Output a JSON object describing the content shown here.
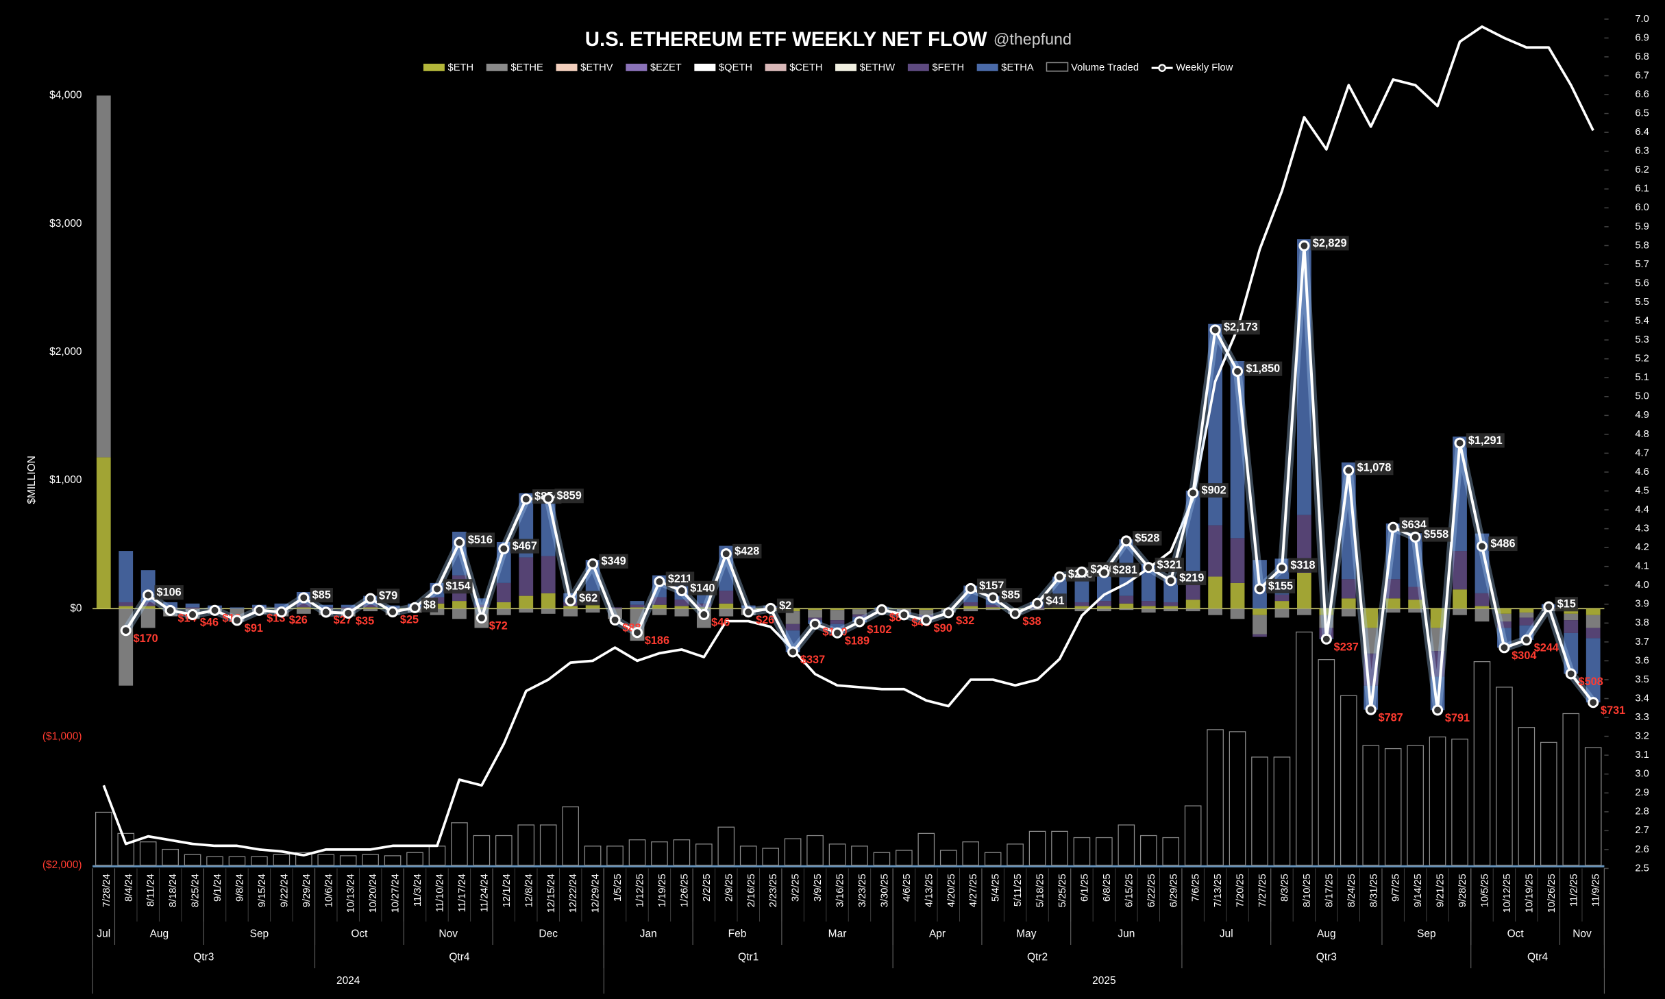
{
  "chart_data": {
    "type": "bar",
    "title": "U.S. ETHEREUM ETF WEEKLY NET FLOW",
    "subtitle": "@thepfund",
    "y_label": "$MILLION",
    "categories": [
      "7/28/24",
      "8/4/24",
      "8/11/24",
      "8/18/24",
      "8/25/24",
      "9/1/24",
      "9/8/24",
      "9/15/24",
      "9/22/24",
      "9/29/24",
      "10/6/24",
      "10/13/24",
      "10/20/24",
      "10/27/24",
      "11/3/24",
      "11/10/24",
      "11/17/24",
      "11/24/24",
      "12/1/24",
      "12/8/24",
      "12/15/24",
      "12/22/24",
      "12/29/24",
      "1/5/25",
      "1/12/25",
      "1/19/25",
      "1/26/25",
      "2/2/25",
      "2/9/25",
      "2/16/25",
      "2/23/25",
      "3/2/25",
      "3/9/25",
      "3/16/25",
      "3/23/25",
      "3/30/25",
      "4/6/25",
      "4/13/25",
      "4/20/25",
      "4/27/25",
      "5/4/25",
      "5/11/25",
      "5/18/25",
      "5/25/25",
      "6/1/25",
      "6/8/25",
      "6/15/25",
      "6/22/25",
      "6/29/25",
      "7/6/25",
      "7/13/25",
      "7/20/25",
      "7/27/25",
      "8/3/25",
      "8/10/25",
      "8/17/25",
      "8/24/25",
      "8/31/25",
      "9/7/25",
      "9/14/25",
      "9/21/25",
      "9/28/25",
      "10/5/25",
      "10/12/25",
      "10/19/25",
      "10/26/25",
      "11/2/25",
      "11/9/25"
    ],
    "month_labels": [
      "Jul",
      "Aug",
      "Sep",
      "Oct",
      "Nov",
      "Dec",
      "Jan",
      "Feb",
      "Mar",
      "Apr",
      "May",
      "Jun",
      "Jul",
      "Aug",
      "Sep",
      "Oct",
      "Nov"
    ],
    "quarter_labels": [
      "Qtr3",
      "Qtr4",
      "Qtr1",
      "Qtr2",
      "Qtr3",
      "Qtr4"
    ],
    "year_labels": [
      "2024",
      "2025"
    ],
    "ylim": [
      -2000,
      4000
    ],
    "yticks": [
      {
        "value": -2000,
        "label": "($2,000)"
      },
      {
        "value": -1000,
        "label": "($1,000)"
      },
      {
        "value": 0,
        "label": "$0"
      },
      {
        "value": 1000,
        "label": "$1,000"
      },
      {
        "value": 2000,
        "label": "$2,000"
      },
      {
        "value": 3000,
        "label": "$3,000"
      },
      {
        "value": 4000,
        "label": "$4,000"
      }
    ],
    "y2lim": [
      2.5,
      7.0
    ],
    "y2ticks": [
      2.5,
      2.6,
      2.7,
      2.8,
      2.9,
      {
        "value": 3.0,
        "label": "3.0"
      },
      3.1,
      3.2,
      3.3,
      3.4,
      3.5,
      3.6,
      3.7,
      3.8,
      3.9,
      {
        "value": 4.0,
        "label": "4.0"
      },
      4.1,
      4.2,
      4.3,
      4.4,
      4.5,
      4.6,
      4.7,
      4.8,
      4.9,
      {
        "value": 5.0,
        "label": "5.0"
      },
      5.1,
      5.2,
      5.3,
      5.4,
      5.5,
      5.6,
      5.7,
      5.8,
      5.9,
      {
        "value": 6.0,
        "label": "6.0"
      },
      6.1,
      6.2,
      6.3,
      6.4,
      6.5,
      6.6,
      6.7,
      6.8,
      6.9,
      {
        "value": 7.0,
        "label": "7.0"
      }
    ],
    "series": [
      {
        "name": "$ETH",
        "color": "#b3b63a",
        "values": [
          1180,
          20,
          20,
          0,
          0,
          0,
          0,
          0,
          0,
          10,
          0,
          0,
          10,
          0,
          0,
          40,
          60,
          10,
          50,
          100,
          120,
          20,
          30,
          0,
          10,
          30,
          20,
          10,
          40,
          0,
          5,
          -20,
          -10,
          -10,
          -5,
          0,
          0,
          -10,
          0,
          20,
          10,
          0,
          0,
          20,
          20,
          20,
          40,
          20,
          20,
          70,
          250,
          200,
          -50,
          60,
          280,
          -50,
          80,
          -150,
          80,
          70,
          -150,
          150,
          20,
          -40,
          -30,
          0,
          -40,
          -50
        ]
      },
      {
        "name": "$ETHE",
        "color": "#8a8a8a",
        "values": [
          2820,
          -600,
          -150,
          -60,
          -80,
          -40,
          -100,
          -40,
          -60,
          -40,
          -50,
          -60,
          -20,
          -50,
          -30,
          -50,
          -80,
          -150,
          -50,
          -30,
          -40,
          -60,
          -30,
          -80,
          -250,
          -50,
          -60,
          -150,
          -60,
          -50,
          -20,
          -100,
          -60,
          -80,
          -40,
          -20,
          -30,
          -40,
          -30,
          -20,
          -10,
          -40,
          -10,
          0,
          -20,
          -20,
          -10,
          -30,
          -20,
          -20,
          -50,
          -80,
          -150,
          -70,
          -50,
          -100,
          -60,
          -200,
          -30,
          -30,
          -180,
          -50,
          -100,
          -60,
          -40,
          -20,
          -50,
          -100
        ]
      },
      {
        "name": "$ETHV",
        "color": "#f3cfbd",
        "values": [
          0,
          0,
          0,
          0,
          0,
          0,
          0,
          0,
          0,
          0,
          0,
          0,
          0,
          0,
          0,
          0,
          0,
          0,
          0,
          0,
          0,
          0,
          0,
          0,
          0,
          0,
          0,
          0,
          0,
          0,
          0,
          0,
          0,
          0,
          0,
          0,
          0,
          0,
          0,
          0,
          0,
          0,
          0,
          0,
          0,
          0,
          0,
          0,
          0,
          0,
          0,
          0,
          0,
          0,
          0,
          0,
          0,
          0,
          0,
          0,
          0,
          0,
          0,
          0,
          0,
          0,
          0,
          0
        ]
      },
      {
        "name": "$EZET",
        "color": "#8a72b8",
        "values": [
          0,
          0,
          0,
          0,
          0,
          0,
          0,
          0,
          0,
          0,
          0,
          0,
          0,
          0,
          0,
          0,
          0,
          0,
          0,
          0,
          0,
          0,
          0,
          0,
          0,
          0,
          0,
          0,
          0,
          0,
          0,
          0,
          0,
          0,
          0,
          0,
          0,
          0,
          0,
          0,
          0,
          0,
          0,
          0,
          0,
          0,
          0,
          0,
          0,
          0,
          0,
          0,
          0,
          0,
          0,
          0,
          0,
          0,
          0,
          0,
          0,
          0,
          0,
          0,
          0,
          0,
          0,
          0
        ]
      },
      {
        "name": "$QETH",
        "color": "#ffffff",
        "values": [
          0,
          0,
          0,
          0,
          0,
          0,
          0,
          0,
          0,
          0,
          0,
          0,
          0,
          0,
          0,
          0,
          0,
          0,
          0,
          0,
          0,
          0,
          0,
          0,
          0,
          0,
          0,
          0,
          0,
          0,
          0,
          0,
          0,
          0,
          0,
          0,
          0,
          0,
          0,
          0,
          0,
          0,
          0,
          0,
          0,
          0,
          0,
          0,
          0,
          0,
          0,
          0,
          0,
          0,
          0,
          0,
          0,
          0,
          0,
          0,
          0,
          0,
          0,
          0,
          0,
          0,
          0,
          0
        ]
      },
      {
        "name": "$CETH",
        "color": "#d9b8b8",
        "values": [
          0,
          0,
          0,
          0,
          0,
          0,
          0,
          0,
          0,
          0,
          0,
          0,
          0,
          0,
          0,
          0,
          0,
          0,
          0,
          0,
          0,
          0,
          0,
          0,
          0,
          0,
          0,
          0,
          0,
          0,
          0,
          0,
          0,
          0,
          0,
          0,
          0,
          0,
          0,
          0,
          0,
          0,
          0,
          0,
          0,
          0,
          0,
          0,
          0,
          0,
          0,
          0,
          0,
          0,
          0,
          0,
          0,
          0,
          0,
          0,
          0,
          0,
          0,
          0,
          0,
          0,
          0,
          0
        ]
      },
      {
        "name": "$ETHW",
        "color": "#f0efe0",
        "values": [
          0,
          0,
          0,
          0,
          0,
          0,
          0,
          0,
          0,
          0,
          0,
          0,
          0,
          0,
          0,
          0,
          0,
          0,
          0,
          0,
          0,
          0,
          0,
          0,
          0,
          0,
          0,
          0,
          0,
          0,
          0,
          0,
          0,
          0,
          0,
          0,
          0,
          0,
          0,
          0,
          0,
          0,
          0,
          0,
          0,
          0,
          0,
          0,
          0,
          0,
          0,
          0,
          0,
          0,
          0,
          0,
          0,
          0,
          0,
          0,
          0,
          0,
          0,
          0,
          0,
          0,
          0,
          0
        ]
      },
      {
        "name": "$FETH",
        "color": "#5e4a80",
        "values": [
          0,
          30,
          30,
          10,
          10,
          5,
          0,
          10,
          10,
          30,
          10,
          10,
          20,
          5,
          10,
          50,
          200,
          20,
          150,
          300,
          290,
          30,
          100,
          10,
          20,
          60,
          50,
          30,
          100,
          5,
          5,
          -50,
          -20,
          -30,
          -20,
          0,
          -5,
          -20,
          0,
          30,
          20,
          0,
          10,
          30,
          30,
          40,
          60,
          40,
          30,
          130,
          400,
          350,
          -20,
          50,
          450,
          -80,
          150,
          -250,
          150,
          100,
          -200,
          300,
          100,
          -50,
          -60,
          5,
          -100,
          -80
        ]
      },
      {
        "name": "$ETHA",
        "color": "#4a6aa8",
        "values": [
          0,
          400,
          250,
          40,
          30,
          20,
          10,
          20,
          30,
          90,
          20,
          20,
          70,
          20,
          30,
          110,
          340,
          50,
          320,
          500,
          480,
          70,
          250,
          0,
          30,
          170,
          130,
          70,
          350,
          20,
          10,
          -170,
          -30,
          -70,
          -40,
          10,
          -10,
          -20,
          0,
          130,
          70,
          0,
          40,
          200,
          250,
          240,
          440,
          290,
          190,
          720,
          1570,
          1380,
          380,
          280,
          2150,
          -7,
          910,
          -187,
          434,
          418,
          -261,
          891,
          466,
          -154,
          -114,
          30,
          -318,
          -501
        ]
      }
    ],
    "volume": {
      "name": "Volume Traded",
      "color": "#8c8c8c",
      "values": [
        413,
        248,
        182,
        124,
        83,
        66,
        66,
        66,
        83,
        99,
        83,
        74,
        83,
        74,
        99,
        149,
        331,
        231,
        231,
        314,
        314,
        455,
        149,
        149,
        198,
        182,
        198,
        165,
        297,
        149,
        132,
        207,
        231,
        165,
        149,
        99,
        116,
        248,
        116,
        182,
        99,
        165,
        264,
        264,
        215,
        215,
        314,
        231,
        215,
        463,
        1057,
        1041,
        843,
        843,
        1818,
        1603,
        1322,
        933,
        909,
        933,
        1000,
        983,
        1587,
        1388,
        1074,
        958,
        1182,
        917
      ]
    },
    "flow": {
      "name": "Weekly Flow",
      "color": "#ffffff",
      "negative_color": "#ff3b30",
      "values": [
        null,
        -170,
        106,
        -14,
        -46,
        -13,
        -91,
        -13,
        -26,
        85,
        -27,
        -35,
        79,
        -25,
        8,
        154,
        516,
        -72,
        467,
        854,
        859,
        62,
        349,
        -88,
        -186,
        211,
        140,
        -46,
        428,
        -26,
        2,
        -337,
        -120,
        -189,
        -102,
        -8,
        -48,
        -90,
        -32,
        157,
        85,
        -38,
        41,
        248,
        286,
        281,
        528,
        321,
        219,
        902,
        2173,
        1850,
        155,
        318,
        2829,
        -237,
        1078,
        -787,
        634,
        558,
        -791,
        1291,
        486,
        -304,
        -244,
        15,
        -508,
        -731
      ],
      "value_labels": [
        null,
        "$170",
        "$106",
        "$14",
        "$46",
        "$13",
        "$91",
        "$13",
        "$26",
        "$85",
        "$27",
        "$35",
        "$79",
        "$25",
        "$8",
        "$154",
        "$516",
        "$72",
        "$467",
        "$854",
        "$859",
        "$62",
        "$349",
        "$88",
        "$186",
        "$211",
        "$140",
        "$46",
        "$428",
        "$26",
        "$2",
        "$337",
        "$120",
        "$189",
        "$102",
        "$8",
        "$48",
        "$90",
        "$32",
        "$157",
        "$85",
        "$38",
        "$41",
        "$248",
        "$286",
        "$281",
        "$528",
        "$321",
        "$219",
        "$902",
        "$2,173",
        "$1,850",
        "$155",
        "$318",
        "$2,829",
        "$237",
        "$1,078",
        "$787",
        "$634",
        "$558",
        "$791",
        "$1,291",
        "$486",
        "$304",
        "$244",
        "$15",
        "$508",
        "$731"
      ]
    },
    "price": {
      "axis": "y2",
      "color": "#ffffff",
      "values": [
        2.94,
        2.63,
        2.67,
        2.65,
        2.63,
        2.62,
        2.62,
        2.6,
        2.59,
        2.57,
        2.6,
        2.6,
        2.6,
        2.62,
        2.62,
        2.62,
        2.97,
        2.94,
        3.16,
        3.44,
        3.5,
        3.59,
        3.6,
        3.67,
        3.6,
        3.64,
        3.66,
        3.62,
        3.81,
        3.81,
        3.78,
        3.66,
        3.53,
        3.47,
        3.46,
        3.45,
        3.45,
        3.39,
        3.36,
        3.5,
        3.5,
        3.47,
        3.5,
        3.61,
        3.84,
        3.95,
        4.01,
        4.09,
        4.18,
        4.46,
        5.08,
        5.36,
        5.78,
        6.09,
        6.48,
        6.31,
        6.65,
        6.43,
        6.68,
        6.65,
        6.54,
        6.88,
        6.96,
        6.9,
        6.85,
        6.85,
        6.65,
        6.41
      ]
    }
  }
}
